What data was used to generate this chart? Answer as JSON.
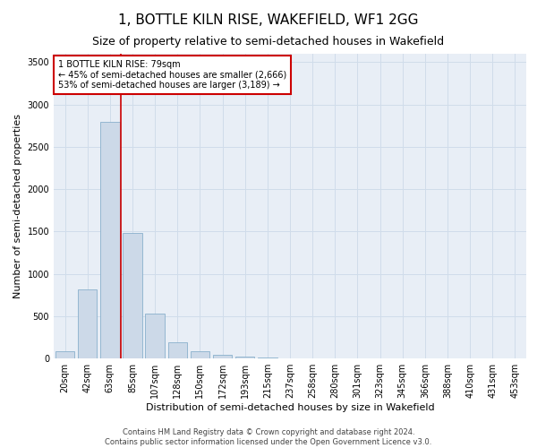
{
  "title": "1, BOTTLE KILN RISE, WAKEFIELD, WF1 2GG",
  "subtitle": "Size of property relative to semi-detached houses in Wakefield",
  "xlabel": "Distribution of semi-detached houses by size in Wakefield",
  "ylabel": "Number of semi-detached properties",
  "footer_line1": "Contains HM Land Registry data © Crown copyright and database right 2024.",
  "footer_line2": "Contains public sector information licensed under the Open Government Licence v3.0.",
  "annotation_line1": "1 BOTTLE KILN RISE: 79sqm",
  "annotation_line2": "← 45% of semi-detached houses are smaller (2,666)",
  "annotation_line3": "53% of semi-detached houses are larger (3,189) →",
  "bar_color": "#ccd9e8",
  "bar_edgecolor": "#8ab0cc",
  "redline_color": "#cc0000",
  "annotation_box_edgecolor": "#cc0000",
  "categories": [
    "20sqm",
    "42sqm",
    "63sqm",
    "85sqm",
    "107sqm",
    "128sqm",
    "150sqm",
    "172sqm",
    "193sqm",
    "215sqm",
    "237sqm",
    "258sqm",
    "280sqm",
    "301sqm",
    "323sqm",
    "345sqm",
    "366sqm",
    "388sqm",
    "410sqm",
    "431sqm",
    "453sqm"
  ],
  "values": [
    80,
    820,
    2800,
    1480,
    530,
    190,
    85,
    40,
    20,
    10,
    5,
    3,
    2,
    1,
    1,
    0,
    0,
    0,
    0,
    0,
    0
  ],
  "ylim": [
    0,
    3600
  ],
  "yticks": [
    0,
    500,
    1000,
    1500,
    2000,
    2500,
    3000,
    3500
  ],
  "redline_x": 2.5,
  "grid_color": "#d0dcea",
  "bg_color": "#e8eef6",
  "title_fontsize": 11,
  "subtitle_fontsize": 9,
  "ylabel_fontsize": 8,
  "xlabel_fontsize": 8,
  "tick_fontsize": 7,
  "annotation_fontsize": 7,
  "footer_fontsize": 6
}
